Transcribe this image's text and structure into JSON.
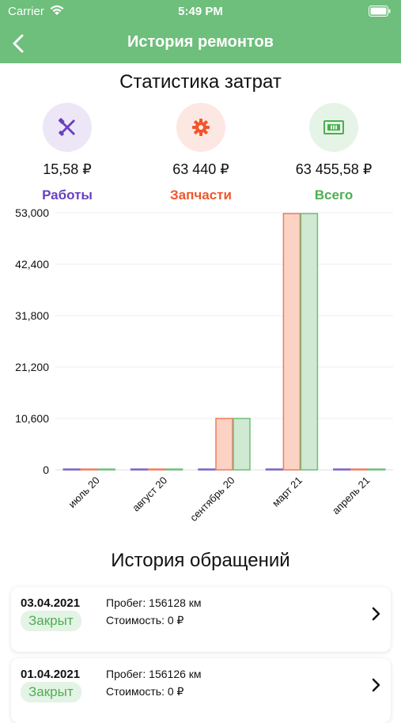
{
  "status_bar": {
    "carrier": "Carrier",
    "time": "5:49 PM"
  },
  "nav": {
    "title": "История ремонтов"
  },
  "stats": {
    "title": "Статистика затрат",
    "items": [
      {
        "value": "15,58 ₽",
        "label": "Работы",
        "color": "#6a3fc0",
        "bg": "#ece6f7",
        "icon": "tools-icon"
      },
      {
        "value": "63 440 ₽",
        "label": "Запчасти",
        "color": "#f0562b",
        "bg": "#fde7e2",
        "icon": "gear-icon"
      },
      {
        "value": "63 455,58 ₽",
        "label": "Всего",
        "color": "#4caf50",
        "bg": "#e6f4e7",
        "icon": "money-icon"
      }
    ]
  },
  "chart_data": {
    "type": "bar",
    "categories": [
      "июль 20",
      "август 20",
      "сентябрь 20",
      "март 21",
      "апрель 21"
    ],
    "y_ticks": [
      "53,000",
      "42,400",
      "31,800",
      "21,200",
      "10,600",
      "0"
    ],
    "ylim": [
      0,
      53000
    ],
    "grid": true,
    "series": [
      {
        "values": [
          0,
          0,
          0,
          0,
          0
        ],
        "color": "#7b61c9",
        "fill": "#e4ddf5"
      },
      {
        "values": [
          0,
          0,
          10600,
          52840,
          0
        ],
        "color": "#f07a5c",
        "fill": "#fcd2c4"
      },
      {
        "values": [
          0,
          0,
          10600,
          52840,
          0
        ],
        "color": "#6dbf7b",
        "fill": "#cfe9d2"
      }
    ]
  },
  "history": {
    "title": "История обращений",
    "items": [
      {
        "date": "03.04.2021",
        "status": "Закрыт",
        "mileage": "Пробег: 156128 км",
        "cost": "Стоимость: 0 ₽"
      },
      {
        "date": "01.04.2021",
        "status": "Закрыт",
        "mileage": "Пробег: 156126 км",
        "cost": "Стоимость: 0 ₽"
      }
    ]
  }
}
